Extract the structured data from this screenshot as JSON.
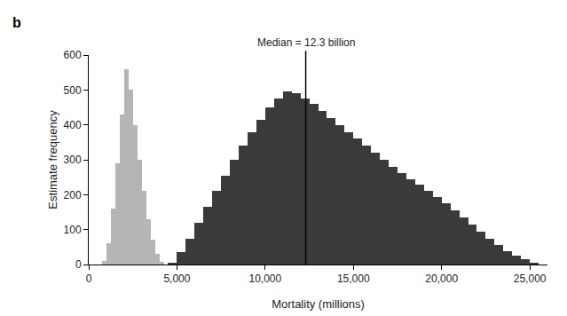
{
  "chart_data": {
    "type": "histogram",
    "panel_label": "b",
    "x_label": "Mortality (millions)",
    "y_label": "Estimate frequency",
    "xlim": [
      0,
      26000
    ],
    "ylim": [
      0,
      600
    ],
    "xticks": [
      0,
      {
        "value": 5000,
        "label": "5,000"
      },
      {
        "value": 10000,
        "label": "10,000"
      },
      {
        "value": 15000,
        "label": "15,000"
      },
      {
        "value": 20000,
        "label": "20,000"
      },
      {
        "value": 25000,
        "label": "25,000"
      }
    ],
    "yticks": [
      0,
      100,
      200,
      300,
      400,
      500,
      600
    ],
    "grid": false,
    "series": [
      {
        "color": "#b5b5b5",
        "bins": [
          750,
          1000,
          1250,
          1500,
          1750,
          2000,
          2250,
          2500,
          2750,
          3000,
          3250,
          3500,
          3750,
          4000,
          4250
        ],
        "counts": [
          10,
          60,
          160,
          290,
          430,
          560,
          500,
          400,
          300,
          210,
          130,
          70,
          30,
          8
        ]
      },
      {
        "color": "#3a3a3a",
        "bins": [
          4500,
          5000,
          5500,
          6000,
          6500,
          7000,
          7500,
          8000,
          8500,
          9000,
          9500,
          10000,
          10500,
          11000,
          11500,
          12000,
          12500,
          13000,
          13500,
          14000,
          14500,
          15000,
          15500,
          16000,
          16500,
          17000,
          17500,
          18000,
          18500,
          19000,
          19500,
          20000,
          20500,
          21000,
          21500,
          22000,
          22500,
          23000,
          23500,
          24000,
          24500,
          25000,
          25500
        ],
        "counts": [
          5,
          35,
          75,
          120,
          165,
          210,
          255,
          300,
          340,
          380,
          415,
          450,
          475,
          495,
          490,
          475,
          460,
          440,
          420,
          400,
          380,
          360,
          340,
          320,
          300,
          280,
          262,
          245,
          228,
          210,
          192,
          175,
          155,
          135,
          115,
          95,
          75,
          55,
          38,
          25,
          15,
          6
        ]
      }
    ],
    "annotations": [
      {
        "text": "Median = 12.3 billion",
        "x": 12300
      }
    ]
  }
}
